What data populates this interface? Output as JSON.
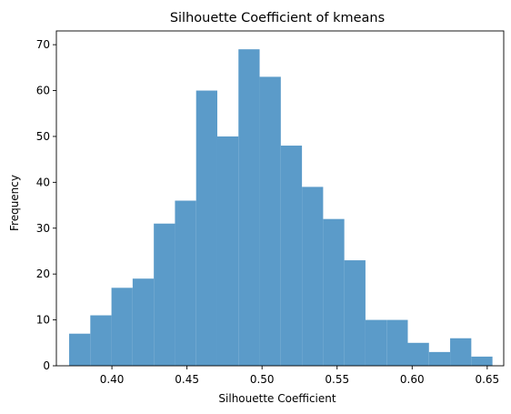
{
  "chart_data": {
    "type": "bar",
    "title": "Silhouette Coefficient of kmeans",
    "xlabel": "Silhouette Coefficient",
    "ylabel": "Frequency",
    "xlim": [
      0.363,
      0.661
    ],
    "ylim": [
      0,
      73
    ],
    "xticks": [
      0.4,
      0.45,
      0.5,
      0.55,
      0.6,
      0.65
    ],
    "xtick_labels": [
      "0.40",
      "0.45",
      "0.50",
      "0.55",
      "0.60",
      "0.65"
    ],
    "yticks": [
      0,
      10,
      20,
      30,
      40,
      50,
      60,
      70
    ],
    "ytick_labels": [
      "0",
      "10",
      "20",
      "30",
      "40",
      "50",
      "60",
      "70"
    ],
    "bin_edges": [
      0.3715,
      0.3856,
      0.3997,
      0.4138,
      0.4279,
      0.442,
      0.4561,
      0.4702,
      0.4843,
      0.4984,
      0.5125,
      0.5266,
      0.5407,
      0.5548,
      0.5689,
      0.583,
      0.5971,
      0.6112,
      0.6253,
      0.6394,
      0.6535
    ],
    "values": [
      7,
      11,
      17,
      19,
      31,
      36,
      60,
      50,
      69,
      63,
      48,
      39,
      32,
      23,
      10,
      10,
      5,
      3,
      6,
      2
    ],
    "bar_color": "#5b9bc9",
    "grid": false,
    "legend": "none"
  }
}
